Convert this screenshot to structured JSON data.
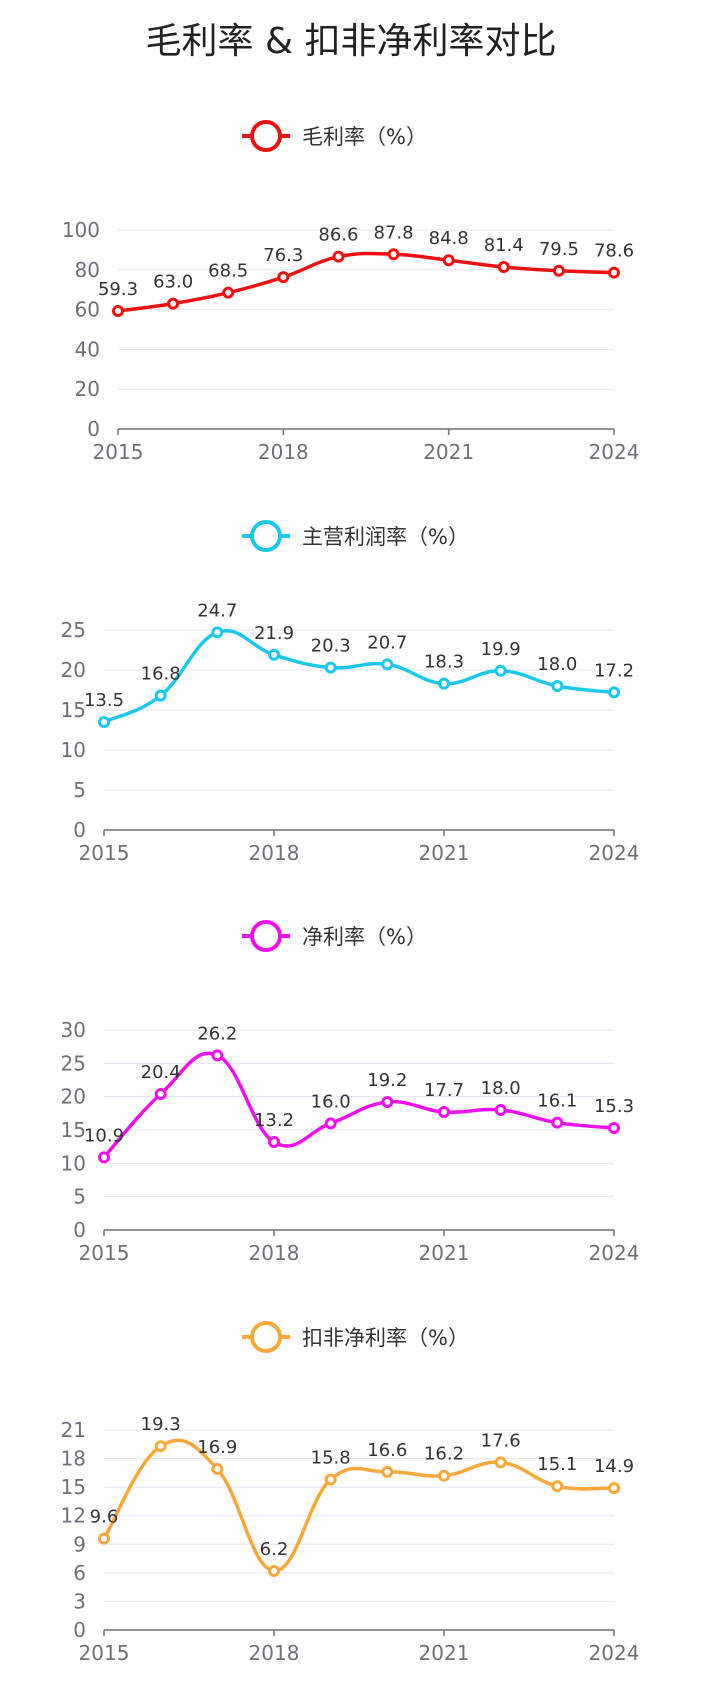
{
  "title": "毛利率 & 扣非净利率对比",
  "chart_data": [
    {
      "type": "line",
      "title": "毛利率（%）",
      "color": "#ee1111",
      "x": [
        2015,
        2016,
        2017,
        2018,
        2019,
        2020,
        2021,
        2022,
        2023,
        2024
      ],
      "values": [
        59.3,
        63.0,
        68.5,
        76.3,
        86.6,
        87.8,
        84.8,
        81.4,
        79.5,
        78.6
      ],
      "value_labels": [
        "59.3",
        "63.0",
        "68.5",
        "76.3",
        "86.6",
        "87.8",
        "84.8",
        "81.4",
        "79.5",
        "78.6"
      ],
      "x_ticks": [
        "2015",
        "2018",
        "2021",
        "2024"
      ],
      "y_ticks": [
        "0",
        "20",
        "40",
        "60",
        "80",
        "100"
      ],
      "ylim": [
        0,
        100
      ],
      "legend": "毛利率（%）",
      "grid": true
    },
    {
      "type": "line",
      "title": "主营利润率（%）",
      "color": "#1cc7ee",
      "x": [
        2015,
        2016,
        2017,
        2018,
        2019,
        2020,
        2021,
        2022,
        2023,
        2024
      ],
      "values": [
        13.5,
        16.8,
        24.7,
        21.9,
        20.3,
        20.7,
        18.3,
        19.9,
        18.0,
        17.2
      ],
      "value_labels": [
        "13.5",
        "16.8",
        "24.7",
        "21.9",
        "20.3",
        "20.7",
        "18.3",
        "19.9",
        "18.0",
        "17.2"
      ],
      "x_ticks": [
        "2015",
        "2018",
        "2021",
        "2024"
      ],
      "y_ticks": [
        "0",
        "5",
        "10",
        "15",
        "20",
        "25"
      ],
      "ylim": [
        0,
        25
      ],
      "legend": "主营利润率（%）",
      "grid": true
    },
    {
      "type": "line",
      "title": "净利率（%）",
      "color": "#ee11ee",
      "x": [
        2015,
        2016,
        2017,
        2018,
        2019,
        2020,
        2021,
        2022,
        2023,
        2024
      ],
      "values": [
        10.9,
        20.4,
        26.2,
        13.2,
        16.0,
        19.2,
        17.7,
        18.0,
        16.1,
        15.3
      ],
      "value_labels": [
        "10.9",
        "20.4",
        "26.2",
        "13.2",
        "16.0",
        "19.2",
        "17.7",
        "18.0",
        "16.1",
        "15.3"
      ],
      "x_ticks": [
        "2015",
        "2018",
        "2021",
        "2024"
      ],
      "y_ticks": [
        "0",
        "5",
        "10",
        "15",
        "20",
        "25",
        "30"
      ],
      "ylim": [
        0,
        30
      ],
      "legend": "净利率（%）",
      "grid": true
    },
    {
      "type": "line",
      "title": "扣非净利率（%）",
      "color": "#f7a83c",
      "x": [
        2015,
        2016,
        2017,
        2018,
        2019,
        2020,
        2021,
        2022,
        2023,
        2024
      ],
      "values": [
        9.6,
        19.3,
        16.9,
        6.2,
        15.8,
        16.6,
        16.2,
        17.6,
        15.1,
        14.9
      ],
      "value_labels": [
        "9.6",
        "19.3",
        "16.9",
        "6.2",
        "15.8",
        "16.6",
        "16.2",
        "17.6",
        "15.1",
        "14.9"
      ],
      "x_ticks": [
        "2015",
        "2018",
        "2021",
        "2024"
      ],
      "y_ticks": [
        "0",
        "3",
        "6",
        "9",
        "12",
        "15",
        "18",
        "21"
      ],
      "ylim": [
        0,
        21
      ],
      "legend": "扣非净利率（%）",
      "grid": true
    }
  ]
}
